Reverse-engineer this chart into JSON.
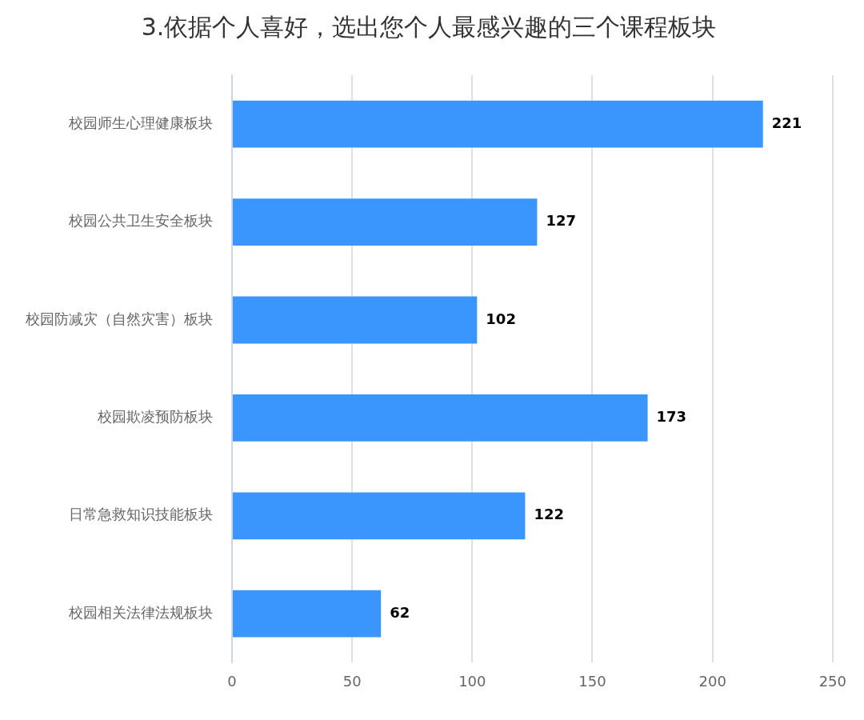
{
  "chart_data": {
    "type": "bar",
    "orientation": "horizontal",
    "title": "3.依据个人喜好，选出您个人最感兴趣的三个课程板块",
    "categories": [
      "校园师生心理健康板块",
      "校园公共卫生安全板块",
      "校园防减灾（自然灾害）板块",
      "校园欺凌预防板块",
      "日常急救知识技能板块",
      "校园相关法律法规板块"
    ],
    "values": [
      221,
      127,
      102,
      173,
      122,
      62
    ],
    "color": "#3a96fd",
    "xlim": [
      0,
      250
    ],
    "xticks": [
      0,
      50,
      100,
      150,
      200,
      250
    ],
    "grid": "x",
    "data_labels": true,
    "legend": false
  }
}
